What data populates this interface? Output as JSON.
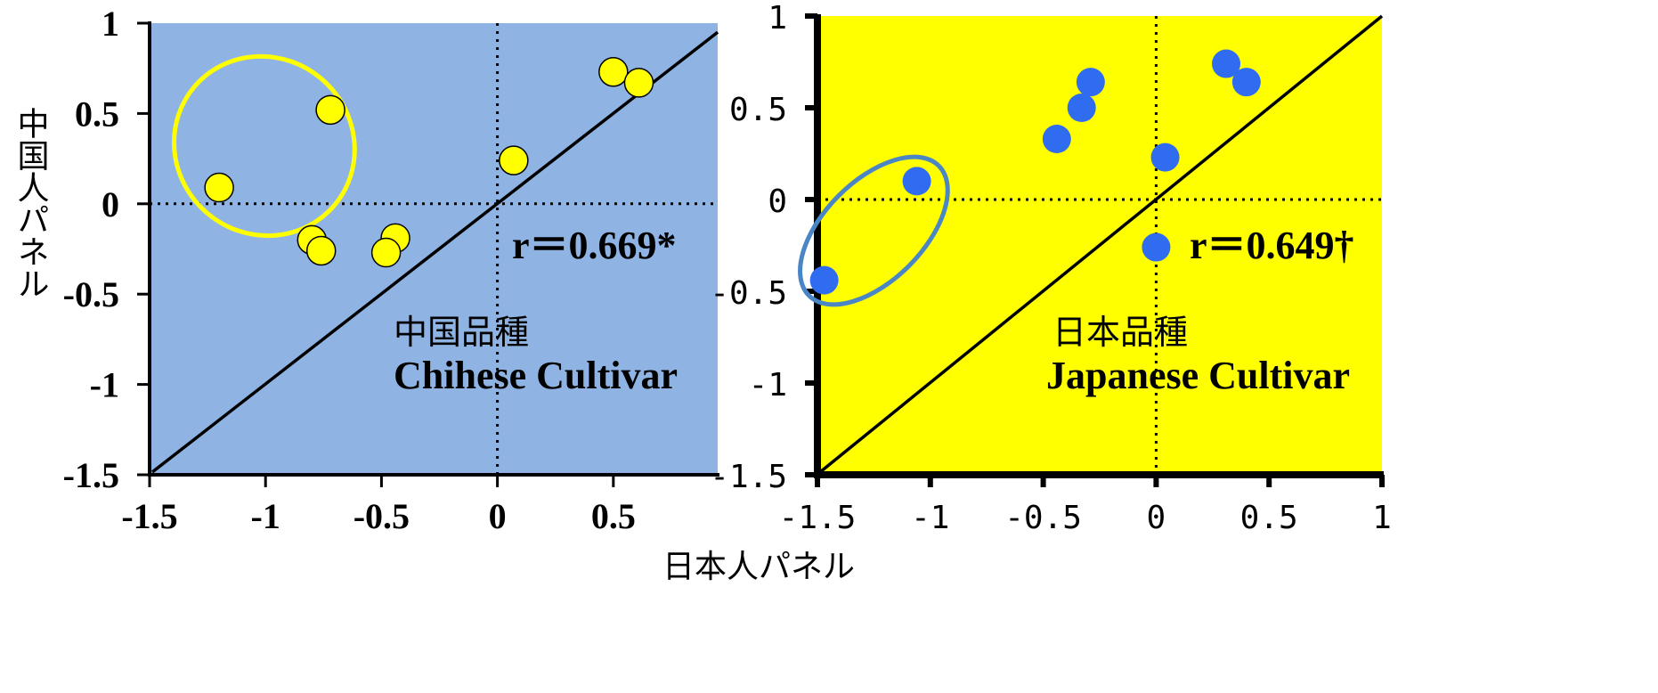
{
  "chart_data": [
    {
      "type": "scatter",
      "panel_label_jp": "中国品種",
      "panel_label_en": "Chihese  Cultivar",
      "correlation_label": "r＝0.669*",
      "xlabel": "日本人パネル",
      "ylabel": "中国人パネル",
      "xlim": [
        -1.5,
        0.95
      ],
      "ylim": [
        -1.5,
        1
      ],
      "x_ticks": [
        "-1.5",
        "-1",
        "-0.5",
        "0",
        "0.5"
      ],
      "y_ticks": [
        "1",
        "0.5",
        "0",
        "-0.5",
        "-1",
        "-1.5"
      ],
      "background_color": "#8fb4e3",
      "marker_color": "#ffff00",
      "highlight_color": "#ffff00",
      "series": [
        {
          "x": [
            -1.2,
            -0.72,
            -0.8,
            -0.76,
            -0.44,
            -0.48,
            0.07,
            0.5,
            0.61
          ],
          "y": [
            0.09,
            0.52,
            -0.2,
            -0.26,
            -0.19,
            -0.27,
            0.24,
            0.73,
            0.67
          ]
        }
      ],
      "reference_line": "y = x",
      "grid": false
    },
    {
      "type": "scatter",
      "panel_label_jp": "日本品種",
      "panel_label_en": "Japanese Cultivar",
      "correlation_label": "r＝0.649†",
      "xlabel": "日本人パネル",
      "xlim": [
        -1.5,
        1
      ],
      "ylim": [
        -1.5,
        1
      ],
      "x_ticks": [
        "-1.5",
        "-1",
        "-0.5",
        "0",
        "0.5",
        "1"
      ],
      "y_ticks": [
        "1",
        "0.5",
        "0",
        "-0.5",
        "-1",
        "-1.5"
      ],
      "background_color": "#ffff00",
      "marker_color": "#2f6cf0",
      "highlight_color": "#4a86c6",
      "series": [
        {
          "x": [
            -1.47,
            -1.06,
            -0.44,
            -0.33,
            -0.29,
            0.04,
            0.0,
            0.31,
            0.4
          ],
          "y": [
            -0.44,
            0.1,
            0.33,
            0.5,
            0.64,
            0.23,
            -0.26,
            0.74,
            0.64
          ]
        }
      ],
      "reference_line": "y = x",
      "grid": false
    }
  ]
}
